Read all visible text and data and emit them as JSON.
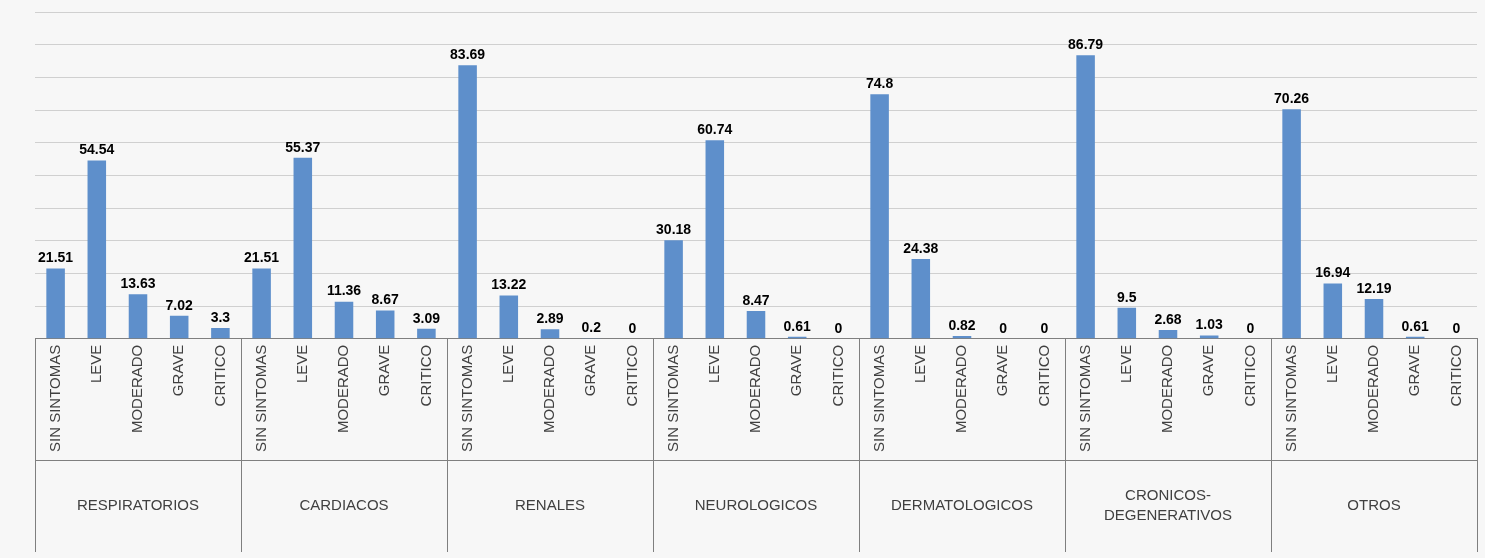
{
  "chart_data": {
    "type": "bar",
    "categories": [
      "SIN SINTOMAS",
      "LEVE",
      "MODERADO",
      "GRAVE",
      "CRITICO",
      "SIN SINTOMAS",
      "LEVE",
      "MODERADO",
      "GRAVE",
      "CRITICO",
      "SIN SINTOMAS",
      "LEVE",
      "MODERADO",
      "GRAVE",
      "CRITICO",
      "SIN SINTOMAS",
      "LEVE",
      "MODERADO",
      "GRAVE",
      "CRITICO",
      "SIN SINTOMAS",
      "LEVE",
      "MODERADO",
      "GRAVE",
      "CRITICO",
      "SIN SINTOMAS",
      "LEVE",
      "MODERADO",
      "GRAVE",
      "CRITICO",
      "SIN SINTOMAS",
      "LEVE",
      "MODERADO",
      "GRAVE",
      "CRITICO"
    ],
    "values": [
      21.51,
      54.54,
      13.63,
      7.02,
      3.3,
      21.51,
      55.37,
      11.36,
      8.67,
      3.09,
      83.69,
      13.22,
      2.89,
      0.2,
      0,
      30.18,
      60.74,
      8.47,
      0.61,
      0,
      74.8,
      24.38,
      0.82,
      0,
      0,
      86.79,
      9.5,
      2.68,
      1.03,
      0,
      70.26,
      16.94,
      12.19,
      0.61,
      0
    ],
    "color": "#5e8fcb",
    "annotations": [
      "RESPIRATORIOS",
      "CARDIACOS",
      "RENALES",
      "NEUROLOGICOS",
      "DERMATOLOGICOS",
      "CRONICOS-DEGENERATIVOS",
      "OTROS"
    ],
    "ylim": [
      0,
      100
    ],
    "tick_labels": "x",
    "grid": "y",
    "legend": false,
    "data_labels": true
  }
}
